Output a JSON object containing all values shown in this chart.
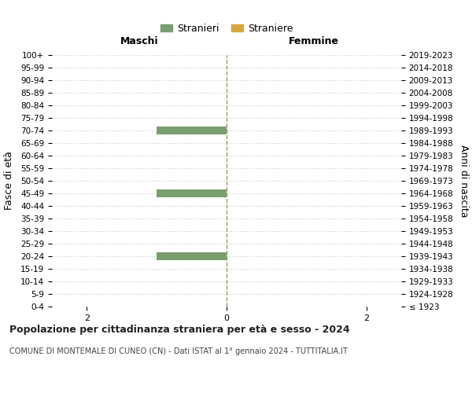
{
  "age_groups": [
    "100+",
    "95-99",
    "90-94",
    "85-89",
    "80-84",
    "75-79",
    "70-74",
    "65-69",
    "60-64",
    "55-59",
    "50-54",
    "45-49",
    "40-44",
    "35-39",
    "30-34",
    "25-29",
    "20-24",
    "15-19",
    "10-14",
    "5-9",
    "0-4"
  ],
  "birth_years": [
    "≤ 1923",
    "1924-1928",
    "1929-1933",
    "1934-1938",
    "1939-1943",
    "1944-1948",
    "1949-1953",
    "1954-1958",
    "1959-1963",
    "1964-1968",
    "1969-1973",
    "1974-1978",
    "1979-1983",
    "1984-1988",
    "1989-1993",
    "1994-1998",
    "1999-2003",
    "2004-2008",
    "2009-2013",
    "2014-2018",
    "2019-2023"
  ],
  "males_stranieri": [
    0,
    0,
    0,
    0,
    0,
    0,
    1,
    0,
    0,
    0,
    0,
    1,
    0,
    0,
    0,
    0,
    1,
    0,
    0,
    0,
    0
  ],
  "females_straniere": [
    0,
    0,
    0,
    0,
    0,
    0,
    0,
    0,
    0,
    0,
    0,
    0,
    0,
    0,
    0,
    0,
    0,
    0,
    0,
    0,
    0
  ],
  "color_males": "#7a9e6e",
  "color_females": "#d4a83a",
  "xlim": 2.5,
  "title_maschi": "Maschi",
  "title_femmine": "Femmine",
  "legend_stranieri": "Stranieri",
  "legend_straniere": "Straniere",
  "ylabel_left": "Fasce di età",
  "ylabel_right": "Anni di nascita",
  "main_title": "Popolazione per cittadinanza straniera per età e sesso - 2024",
  "subtitle": "COMUNE DI MONTEMALE DI CUNEO (CN) - Dati ISTAT al 1° gennaio 2024 - TUTTITALIA.IT",
  "background_color": "#ffffff",
  "grid_color": "#cccccc",
  "dashed_line_color": "#999966"
}
